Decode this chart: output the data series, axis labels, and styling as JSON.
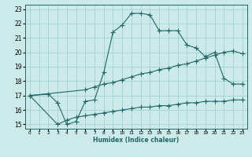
{
  "xlabel": "Humidex (Indice chaleur)",
  "bg_color": "#cceaea",
  "grid_color": "#99cccc",
  "line_color": "#226666",
  "xlim": [
    -0.5,
    23.5
  ],
  "ylim": [
    14.7,
    23.3
  ],
  "xticks": [
    0,
    1,
    2,
    3,
    4,
    5,
    6,
    7,
    8,
    9,
    10,
    11,
    12,
    13,
    14,
    15,
    16,
    17,
    18,
    19,
    20,
    21,
    22,
    23
  ],
  "yticks": [
    15,
    16,
    17,
    18,
    19,
    20,
    21,
    22,
    23
  ],
  "line1_x": [
    0,
    2,
    3,
    4,
    5,
    6,
    7,
    8,
    9,
    10,
    11,
    12,
    13,
    14,
    15,
    16,
    17,
    18,
    19,
    20,
    21,
    22,
    23
  ],
  "line1_y": [
    17.0,
    17.1,
    16.5,
    15.0,
    15.2,
    16.6,
    16.7,
    18.6,
    21.4,
    21.9,
    22.7,
    22.7,
    22.6,
    21.5,
    21.5,
    21.5,
    20.5,
    20.3,
    19.7,
    20.0,
    18.2,
    17.8,
    17.8
  ],
  "line2_x": [
    0,
    6,
    7,
    8,
    9,
    10,
    11,
    12,
    13,
    14,
    15,
    16,
    17,
    18,
    19,
    20,
    21,
    22,
    23
  ],
  "line2_y": [
    17.0,
    17.4,
    17.6,
    17.8,
    17.9,
    18.1,
    18.3,
    18.5,
    18.6,
    18.8,
    18.9,
    19.1,
    19.2,
    19.4,
    19.6,
    19.8,
    20.0,
    20.1,
    19.9
  ],
  "line3_x": [
    0,
    3,
    4,
    5,
    6,
    7,
    8,
    9,
    10,
    11,
    12,
    13,
    14,
    15,
    16,
    17,
    18,
    19,
    20,
    21,
    22,
    23
  ],
  "line3_y": [
    17.0,
    15.0,
    15.3,
    15.5,
    15.6,
    15.7,
    15.8,
    15.9,
    16.0,
    16.1,
    16.2,
    16.2,
    16.3,
    16.3,
    16.4,
    16.5,
    16.5,
    16.6,
    16.6,
    16.6,
    16.7,
    16.7
  ]
}
